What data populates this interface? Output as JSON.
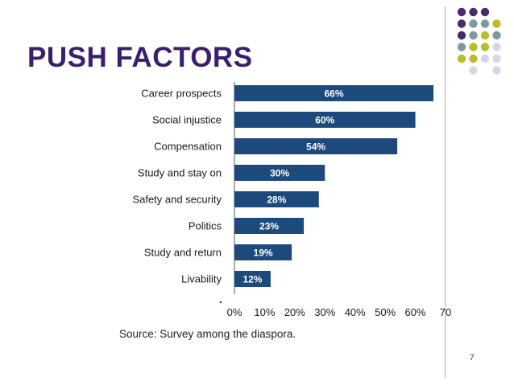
{
  "slide": {
    "title": "PUSH FACTORS",
    "page_number": "7",
    "source": "Source: Survey among the diaspora."
  },
  "colors": {
    "title": "#3a1f6e",
    "bar": "#1c4a7c",
    "bar_label": "#ffffff",
    "dot_purple": "#4a2a6a",
    "dot_teal": "#7b9aa0",
    "dot_olive": "#bcbc2a",
    "dot_lavender": "#d6d6e6"
  },
  "decoration": {
    "dot_grid": [
      [
        "dot_purple",
        "dot_purple",
        "dot_purple",
        "none"
      ],
      [
        "dot_purple",
        "dot_teal",
        "dot_teal",
        "dot_olive"
      ],
      [
        "dot_purple",
        "dot_teal",
        "dot_olive",
        "dot_teal"
      ],
      [
        "dot_teal",
        "dot_olive",
        "dot_olive",
        "dot_lavender"
      ],
      [
        "dot_olive",
        "dot_olive",
        "dot_lavender",
        "dot_lavender"
      ],
      [
        "none",
        "dot_lavender",
        "none",
        "dot_lavender"
      ]
    ]
  },
  "chart_data": {
    "type": "bar",
    "orientation": "horizontal",
    "title": "",
    "xlabel": "",
    "ylabel": "",
    "categories": [
      "Career prospects",
      "Social injustice",
      "Compensation",
      "Study and stay on",
      "Safety and security",
      "Politics",
      "Study and return",
      "Livability"
    ],
    "values": [
      66,
      60,
      54,
      30,
      28,
      23,
      19,
      12
    ],
    "data_labels": [
      "66%",
      "60%",
      "54%",
      "30%",
      "28%",
      "23%",
      "19%",
      "12%"
    ],
    "xlim": [
      0,
      70
    ],
    "x_ticks": [
      0,
      10,
      20,
      30,
      40,
      50,
      60,
      70
    ],
    "x_tick_labels": [
      "0%",
      "10%",
      "20%",
      "30%",
      "40%",
      "50%",
      "60%",
      "70"
    ],
    "grid": false,
    "legend": "none"
  }
}
